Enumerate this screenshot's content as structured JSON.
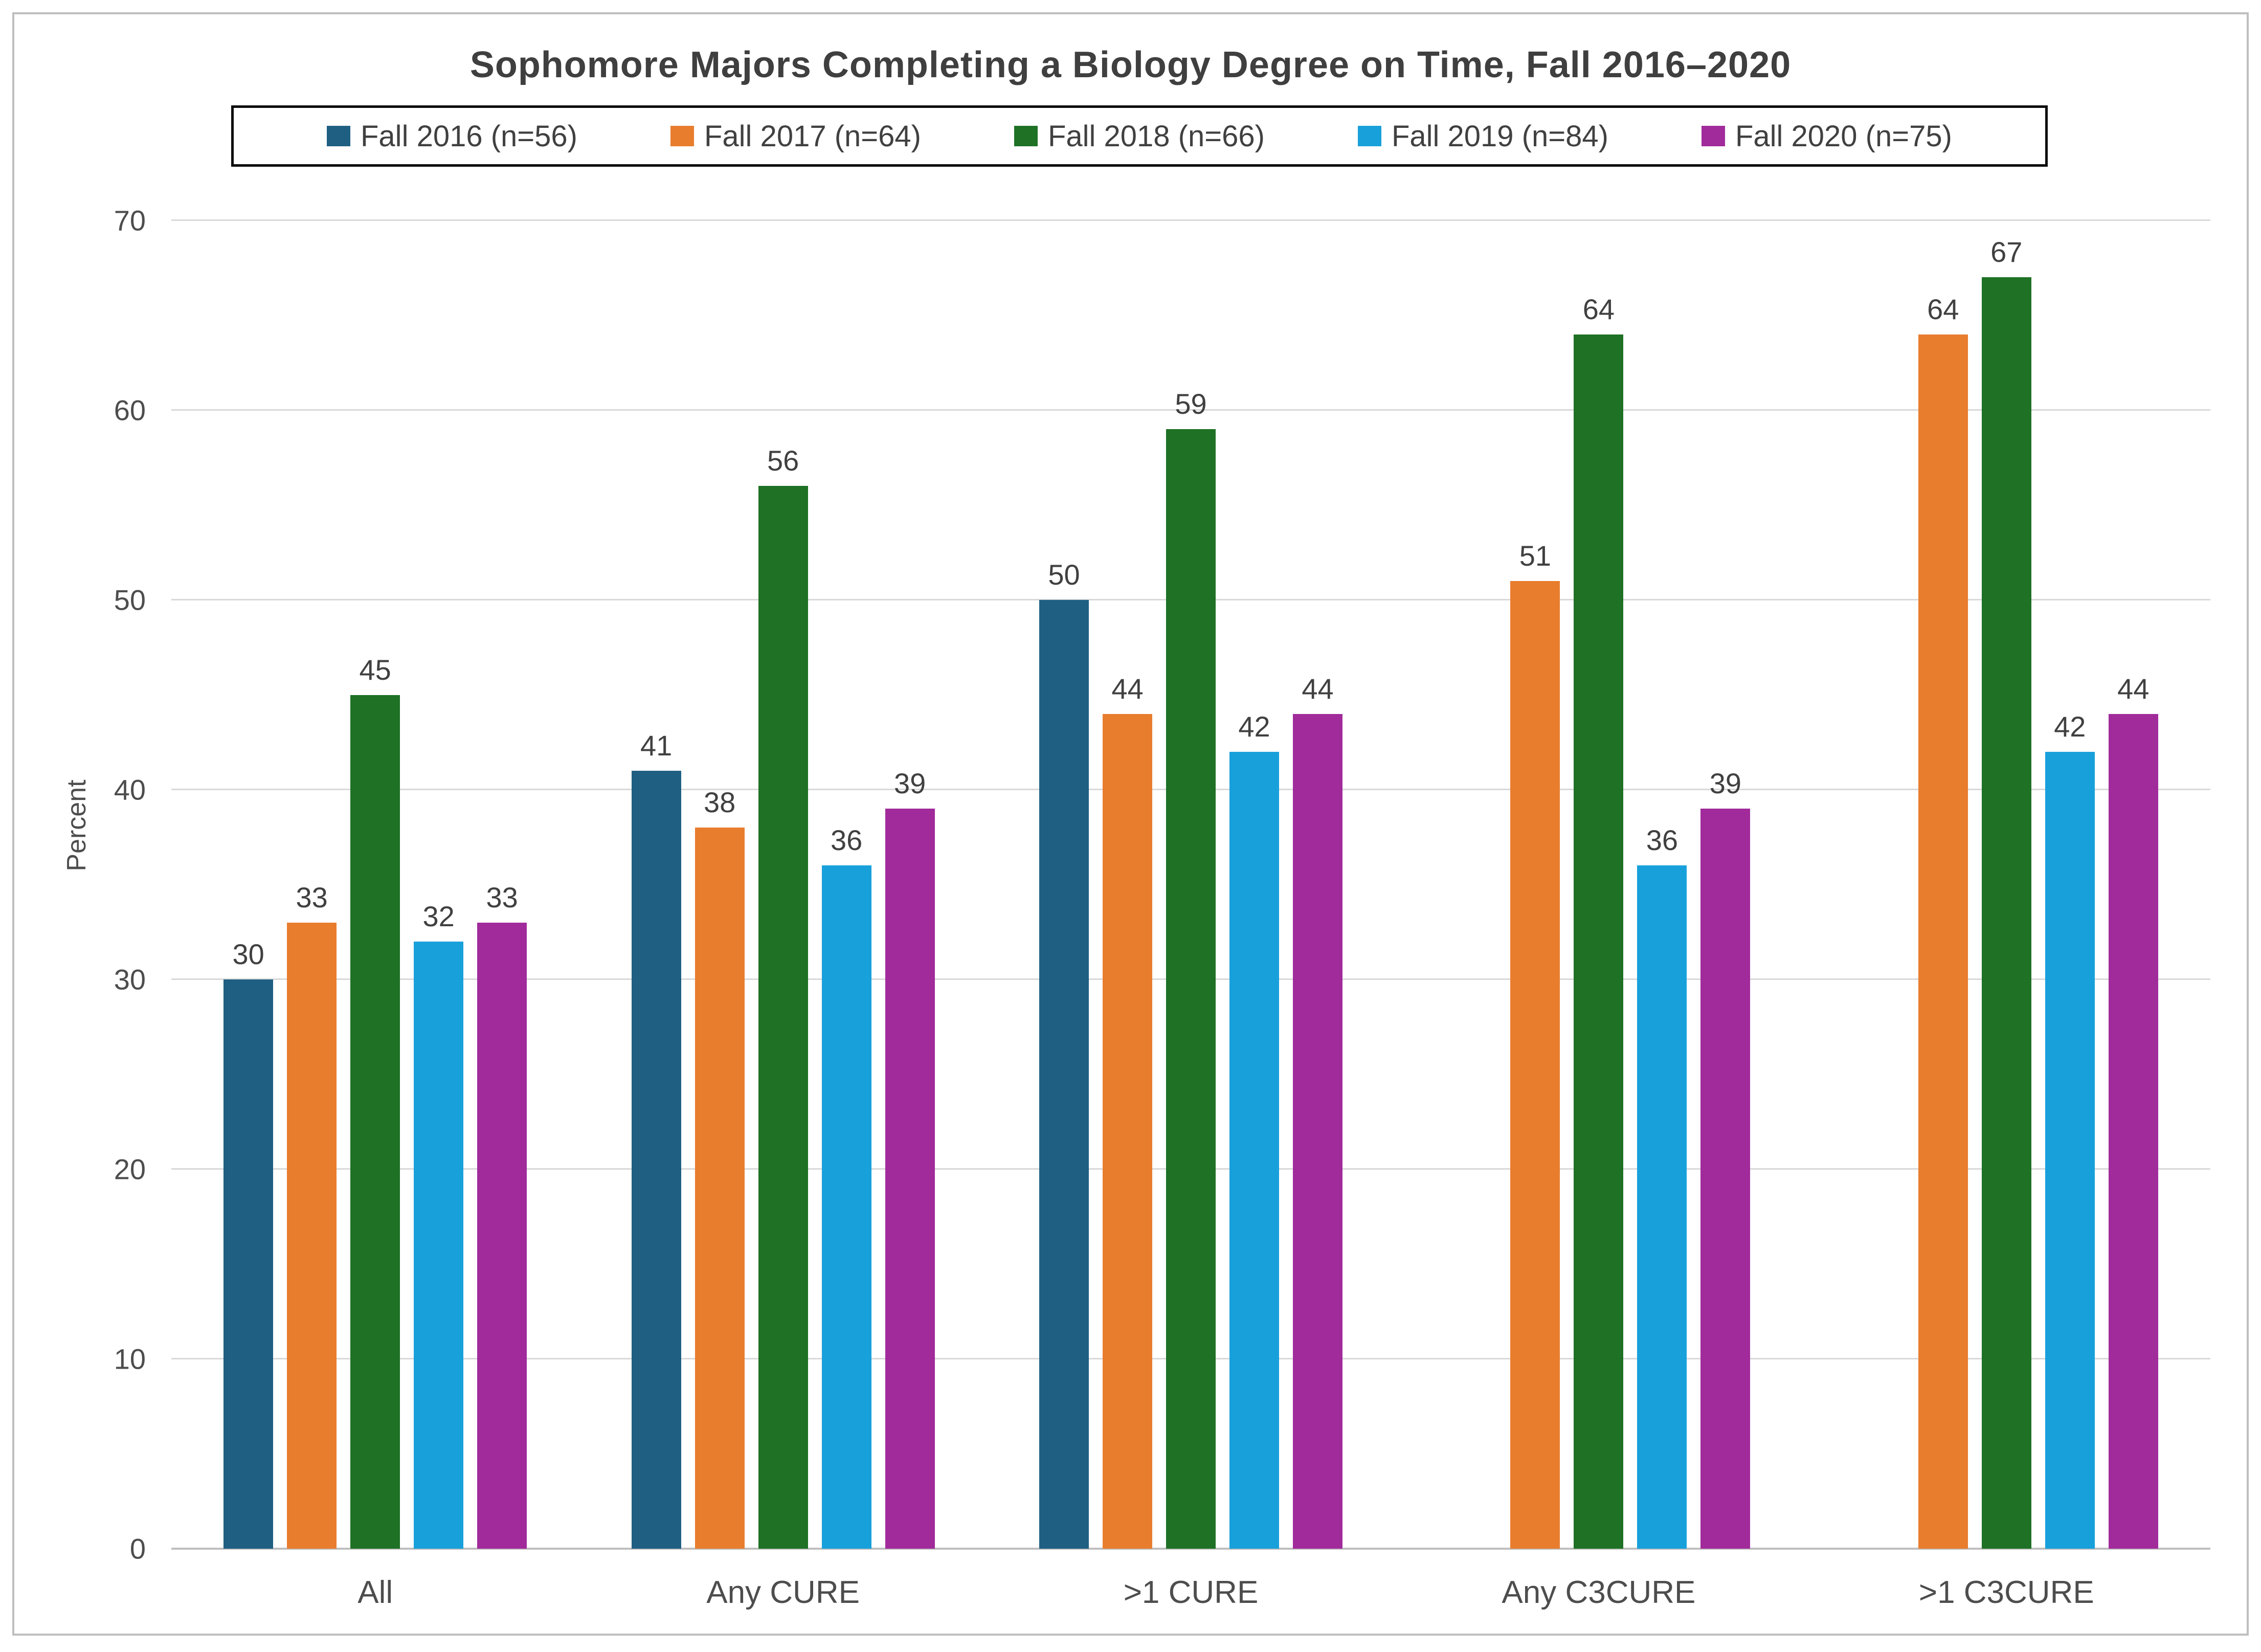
{
  "chart_data": {
    "type": "bar",
    "title": "Sophomore Majors Completing a Biology Degree on Time, Fall 2016–2020",
    "xlabel": "",
    "ylabel": "Percent",
    "ylim": [
      0,
      70
    ],
    "y_tick_step": 10,
    "y_ticks": [
      0,
      10,
      20,
      30,
      40,
      50,
      60,
      70
    ],
    "grid": true,
    "legend_position": "top",
    "bar_value_labels": true,
    "categories": [
      "All",
      "Any CURE",
      ">1 CURE",
      "Any C3CURE",
      ">1 C3CURE"
    ],
    "series": [
      {
        "name": "Fall 2016 (n=56)",
        "color": "#1F5F82",
        "values": [
          30,
          41,
          50,
          null,
          null
        ]
      },
      {
        "name": "Fall 2017 (n=64)",
        "color": "#E87D2E",
        "values": [
          33,
          38,
          44,
          51,
          64
        ]
      },
      {
        "name": "Fall 2018 (n=66)",
        "color": "#1E7125",
        "values": [
          45,
          56,
          59,
          64,
          67
        ]
      },
      {
        "name": "Fall 2019 (n=84)",
        "color": "#18A0DB",
        "values": [
          32,
          36,
          42,
          36,
          42
        ]
      },
      {
        "name": "Fall 2020 (n=75)",
        "color": "#A12B9B",
        "values": [
          33,
          39,
          44,
          39,
          44
        ]
      }
    ]
  },
  "colors": {
    "gridline": "#D9D9D9",
    "axis_line": "#BFBFBF",
    "frame": "#BFBFBF",
    "legend_border": "#0D0D0D",
    "text": "#404040"
  }
}
